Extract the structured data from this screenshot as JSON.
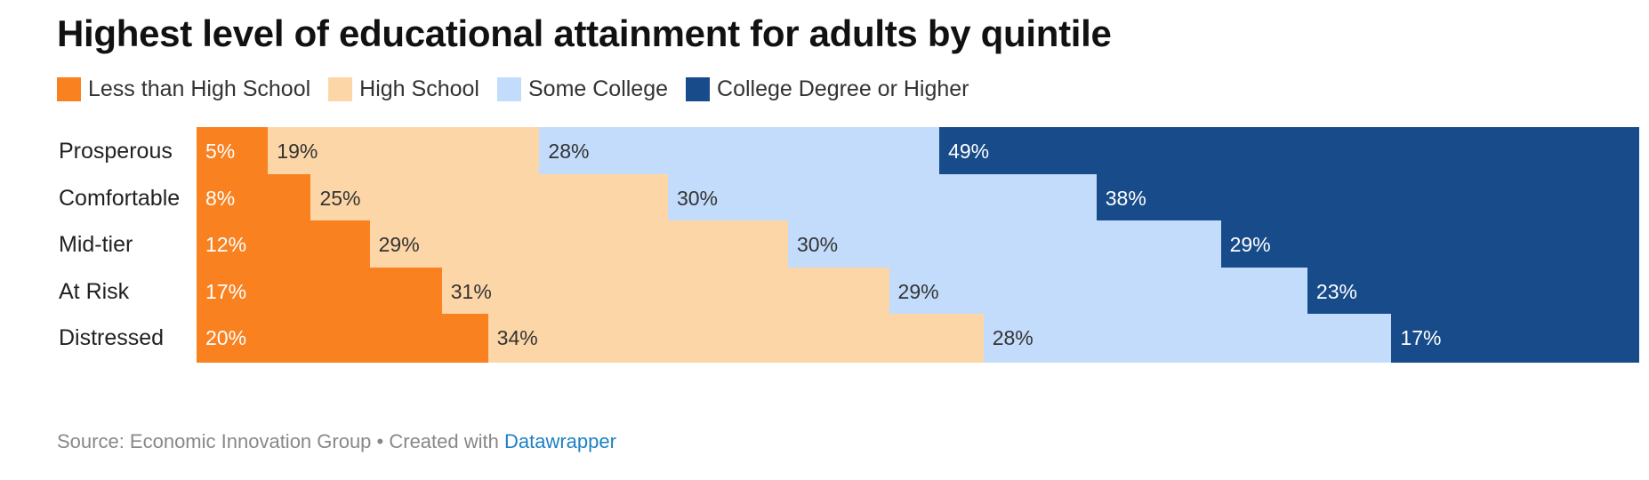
{
  "title": "Highest level of educational attainment for adults by quintile",
  "footer": {
    "source": "Source: Economic Innovation Group",
    "separator": " • ",
    "created_with": "Created with ",
    "tool": "Datawrapper"
  },
  "colors": {
    "less_than_high_school": "#f98120",
    "high_school": "#fdd6a8",
    "some_college": "#c3dcfb",
    "college_degree": "#174b89",
    "label_dark": "#333333",
    "label_light": "#ffffff"
  },
  "chart_data": {
    "type": "bar",
    "orientation": "horizontal",
    "stacked": true,
    "normalized_percent": true,
    "title": "Highest level of educational attainment for adults by quintile",
    "xlabel": "",
    "ylabel": "",
    "xlim": [
      0,
      100
    ],
    "grid": false,
    "legend_position": "top-left",
    "categories": [
      "Prosperous",
      "Comfortable",
      "Mid-tier",
      "At Risk",
      "Distressed"
    ],
    "series": [
      {
        "name": "Less than High School",
        "color": "#f98120",
        "values": [
          5,
          8,
          12,
          17,
          20
        ],
        "labels": [
          "5%",
          "8%",
          "12%",
          "17%",
          "20%"
        ]
      },
      {
        "name": "High School",
        "color": "#fdd6a8",
        "values": [
          19,
          25,
          29,
          31,
          34
        ],
        "labels": [
          "19%",
          "25%",
          "29%",
          "31%",
          "34%"
        ]
      },
      {
        "name": "Some College",
        "color": "#c3dcfb",
        "values": [
          28,
          30,
          30,
          29,
          28
        ],
        "labels": [
          "28%",
          "30%",
          "30%",
          "29%",
          "28%"
        ]
      },
      {
        "name": "College Degree or Higher",
        "color": "#174b89",
        "values": [
          49,
          38,
          29,
          23,
          17
        ],
        "labels": [
          "49%",
          "38%",
          "29%",
          "23%",
          "17%"
        ]
      }
    ]
  }
}
